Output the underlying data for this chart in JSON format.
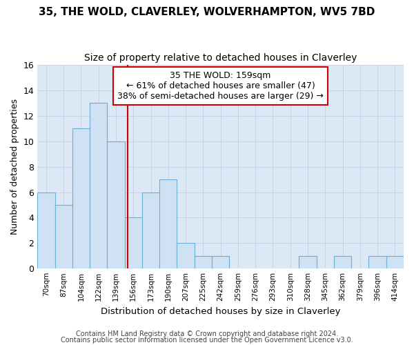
{
  "title": "35, THE WOLD, CLAVERLEY, WOLVERHAMPTON, WV5 7BD",
  "subtitle": "Size of property relative to detached houses in Claverley",
  "xlabel": "Distribution of detached houses by size in Claverley",
  "ylabel": "Number of detached properties",
  "footnote1": "Contains HM Land Registry data © Crown copyright and database right 2024.",
  "footnote2": "Contains public sector information licensed under the Open Government Licence v3.0.",
  "bin_labels": [
    "70sqm",
    "87sqm",
    "104sqm",
    "122sqm",
    "139sqm",
    "156sqm",
    "173sqm",
    "190sqm",
    "207sqm",
    "225sqm",
    "242sqm",
    "259sqm",
    "276sqm",
    "293sqm",
    "310sqm",
    "328sqm",
    "345sqm",
    "362sqm",
    "379sqm",
    "396sqm",
    "414sqm"
  ],
  "bar_values": [
    6,
    5,
    11,
    13,
    10,
    4,
    6,
    7,
    2,
    1,
    1,
    0,
    0,
    0,
    0,
    1,
    0,
    1,
    0,
    1,
    1
  ],
  "bar_color": "#cfe2f3",
  "bar_edge_color": "#6aaed6",
  "annotation_line1": "35 THE WOLD: 159sqm",
  "annotation_line2": "← 61% of detached houses are smaller (47)",
  "annotation_line3": "38% of semi-detached houses are larger (29) →",
  "annotation_box_color": "#ffffff",
  "annotation_box_edge": "#cc0000",
  "vline_color": "#cc0000",
  "ylim": [
    0,
    16
  ],
  "yticks": [
    0,
    2,
    4,
    6,
    8,
    10,
    12,
    14,
    16
  ],
  "grid_color": "#c8d4e3",
  "plot_bg_color": "#dce8f5",
  "fig_bg_color": "#ffffff",
  "title_fontsize": 11,
  "subtitle_fontsize": 10
}
